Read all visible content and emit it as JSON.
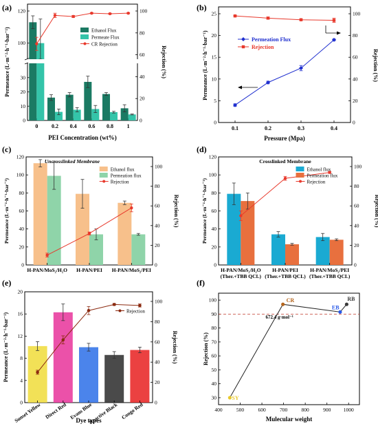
{
  "figure": {
    "panel_labels": [
      "(a)",
      "(b)",
      "(c)",
      "(d)",
      "(e)",
      "(f)"
    ]
  },
  "chart_data": [
    {
      "id": "a",
      "type": "bar",
      "title": "",
      "xlabel": "PEI Concentration (wt%)",
      "ylabel": "Permeance (L·m⁻²·h⁻¹·bar⁻¹)",
      "y2label": "Rejection (%)",
      "categories": [
        "0",
        "0.2",
        "0.4",
        "0.6",
        "0.8",
        "1"
      ],
      "axis_break": true,
      "y_lower_range": [
        0,
        40
      ],
      "y_upper_range": [
        90,
        120
      ],
      "y_lower_ticks": [
        0,
        10,
        20,
        30
      ],
      "y_upper_ticks": [
        100,
        120
      ],
      "y2lim": [
        0,
        100
      ],
      "y2_ticks": [
        0,
        20,
        40,
        60,
        80,
        100
      ],
      "legend_position": "right",
      "series": [
        {
          "name": "Ethanol Flux",
          "kind": "bar",
          "color": "#1b7a63",
          "values": [
            113,
            16,
            18,
            27,
            18.5,
            8.5
          ],
          "errors": [
            4,
            2,
            1.5,
            4,
            1,
            2.5
          ]
        },
        {
          "name": "Permeate Flux",
          "kind": "bar",
          "color": "#34c4a9",
          "values": [
            100,
            6,
            7.5,
            8,
            5.8,
            4.2
          ],
          "errors": [
            15,
            2,
            1.5,
            2.5,
            0.6,
            0.3
          ]
        },
        {
          "name": "CR Rejection",
          "kind": "line",
          "color": "#e8392c",
          "values": [
            70,
            96,
            95,
            98,
            97.5,
            98
          ],
          "errors": [
            6,
            2,
            1,
            0.5,
            0.5,
            0.5
          ]
        }
      ]
    },
    {
      "id": "b",
      "type": "line",
      "title": "",
      "xlabel": "Pressure (Mpa)",
      "ylabel": "Permeance (L·m⁻²·h⁻¹·bar⁻¹)",
      "y2label": "Rejection (%)",
      "x": [
        0.1,
        0.2,
        0.3,
        0.4
      ],
      "xlim": [
        0.05,
        0.45
      ],
      "x_ticks": [
        0.1,
        0.2,
        0.3,
        0.4
      ],
      "ylim": [
        0,
        25
      ],
      "y_ticks": [
        0,
        5,
        10,
        15,
        20,
        25
      ],
      "y2lim": [
        0,
        100
      ],
      "y2_ticks": [
        0,
        20,
        40,
        60,
        80,
        100
      ],
      "legend_position": "top-center",
      "series": [
        {
          "name": "Permeation Flux",
          "kind": "line",
          "axis": "left",
          "color": "#1f2fcf",
          "values": [
            4,
            9.2,
            12.5,
            19
          ],
          "errors": [
            0.3,
            0.3,
            0.6,
            0.2
          ]
        },
        {
          "name": "Rejection",
          "kind": "line",
          "axis": "right",
          "color": "#e8392c",
          "values": [
            98,
            96,
            94.5,
            94
          ],
          "errors": [
            0.5,
            1,
            0.5,
            2
          ]
        }
      ]
    },
    {
      "id": "c",
      "type": "bar",
      "title": "Uncrosslinked Membrane",
      "xlabel": "",
      "ylabel": "Permeance (L·m⁻²·h⁻¹·bar⁻¹)",
      "y2label": "Rejection (%)",
      "categories": [
        "H-PAN/MoS₂/H₂O",
        "H-PAN/PEI",
        "H-PAN/MoS₂/PEI"
      ],
      "ylim": [
        0,
        120
      ],
      "y_ticks": [
        0,
        20,
        40,
        60,
        80,
        100,
        120
      ],
      "y2lim": [
        0,
        100
      ],
      "y2_ticks": [
        0,
        20,
        40,
        60,
        80,
        100
      ],
      "legend_position": "top-right",
      "series": [
        {
          "name": "Ethanol flux",
          "kind": "bar",
          "color": "#f7c08b",
          "values": [
            113,
            79,
            69
          ],
          "errors": [
            4,
            16,
            2
          ]
        },
        {
          "name": "Permeation flux",
          "kind": "bar",
          "color": "#8fd4a9",
          "values": [
            99,
            34,
            34
          ],
          "errors": [
            15,
            6,
            1
          ]
        },
        {
          "name": "Rejection",
          "kind": "line",
          "color": "#e8392c",
          "values": [
            10,
            32,
            58
          ],
          "errors": [
            2,
            1.5,
            4
          ]
        }
      ]
    },
    {
      "id": "d",
      "type": "bar",
      "title": "Crosslinked Membrane",
      "xlabel": "",
      "ylabel": "Permeance (L·m⁻²·h⁻¹·bar⁻¹)",
      "y2label": "Rejection (%)",
      "categories": [
        "H-PAN/MoS₂/H₂O (Ther.+TBB QCL)",
        "H-PAN/PEI (Ther.+TBB QCL)",
        "H-PAN/MoS₂/PEI (Ther.+TBB QCL)"
      ],
      "ylim": [
        0,
        120
      ],
      "y_ticks": [
        0,
        20,
        40,
        60,
        80,
        100,
        120
      ],
      "y2lim": [
        0,
        100
      ],
      "y2_ticks": [
        0,
        20,
        40,
        60,
        80,
        100
      ],
      "legend_position": "top-right",
      "series": [
        {
          "name": "Ethanol flux",
          "kind": "bar",
          "color": "#1aaad2",
          "values": [
            79,
            34,
            31
          ],
          "errors": [
            12,
            3,
            4
          ]
        },
        {
          "name": "Permeation flux",
          "kind": "bar",
          "color": "#e8703e",
          "values": [
            71,
            23,
            28
          ],
          "errors": [
            9,
            1,
            1
          ]
        },
        {
          "name": "Rejection",
          "kind": "line",
          "color": "#e8392c",
          "values": [
            50,
            88,
            94
          ],
          "errors": [
            5,
            2,
            1
          ]
        }
      ]
    },
    {
      "id": "e",
      "type": "bar",
      "title": "",
      "xlabel": "Dye types",
      "ylabel": "Permeance (L·m⁻²·h⁻¹·bar⁻¹)",
      "y2label": "Rejection (%)",
      "categories": [
        "Sunset Yellow",
        "Direct Red",
        "Evans Blue",
        "Reactive Black",
        "Congo Red"
      ],
      "ylim": [
        0,
        20
      ],
      "y_ticks": [
        0,
        4,
        8,
        12,
        16,
        20
      ],
      "y2lim": [
        0,
        100
      ],
      "y2_ticks": [
        0,
        20,
        40,
        60,
        80,
        100
      ],
      "legend_position": "top-right",
      "series": [
        {
          "name": "Permeance",
          "kind": "bar",
          "colors": [
            "#f0dc3a",
            "#e8329a",
            "#2c6fe8",
            "#2a2a2a",
            "#e82020"
          ],
          "values": [
            10.2,
            16.3,
            10,
            8.6,
            9.5
          ],
          "errors": [
            0.8,
            1.5,
            0.7,
            0.6,
            0.5
          ]
        },
        {
          "name": "Rejection",
          "kind": "line",
          "color": "#8b2a10",
          "values": [
            30,
            62,
            91,
            97,
            96
          ],
          "errors": [
            2,
            4,
            4,
            1,
            1.5
          ]
        }
      ]
    },
    {
      "id": "f",
      "type": "scatter",
      "title": "",
      "xlabel": "Mulecular weight",
      "ylabel": "Rejection (%)",
      "xlim": [
        400,
        1050
      ],
      "x_ticks": [
        400,
        500,
        600,
        700,
        800,
        900,
        1000
      ],
      "ylim": [
        25,
        105
      ],
      "y_ticks": [
        30,
        40,
        50,
        60,
        70,
        80,
        90,
        100
      ],
      "reference_line": 90,
      "annotation": "672.4 g·mol⁻¹",
      "points": [
        {
          "label": "SY",
          "x": 452,
          "y": 30,
          "color": "#e8c82a"
        },
        {
          "label": "CR",
          "x": 697,
          "y": 97,
          "color": "#b5651d"
        },
        {
          "label": "EB",
          "x": 961,
          "y": 91.5,
          "color": "#2a5ae8"
        },
        {
          "label": "RB",
          "x": 991,
          "y": 97,
          "color": "#3a3a3a"
        }
      ]
    }
  ]
}
